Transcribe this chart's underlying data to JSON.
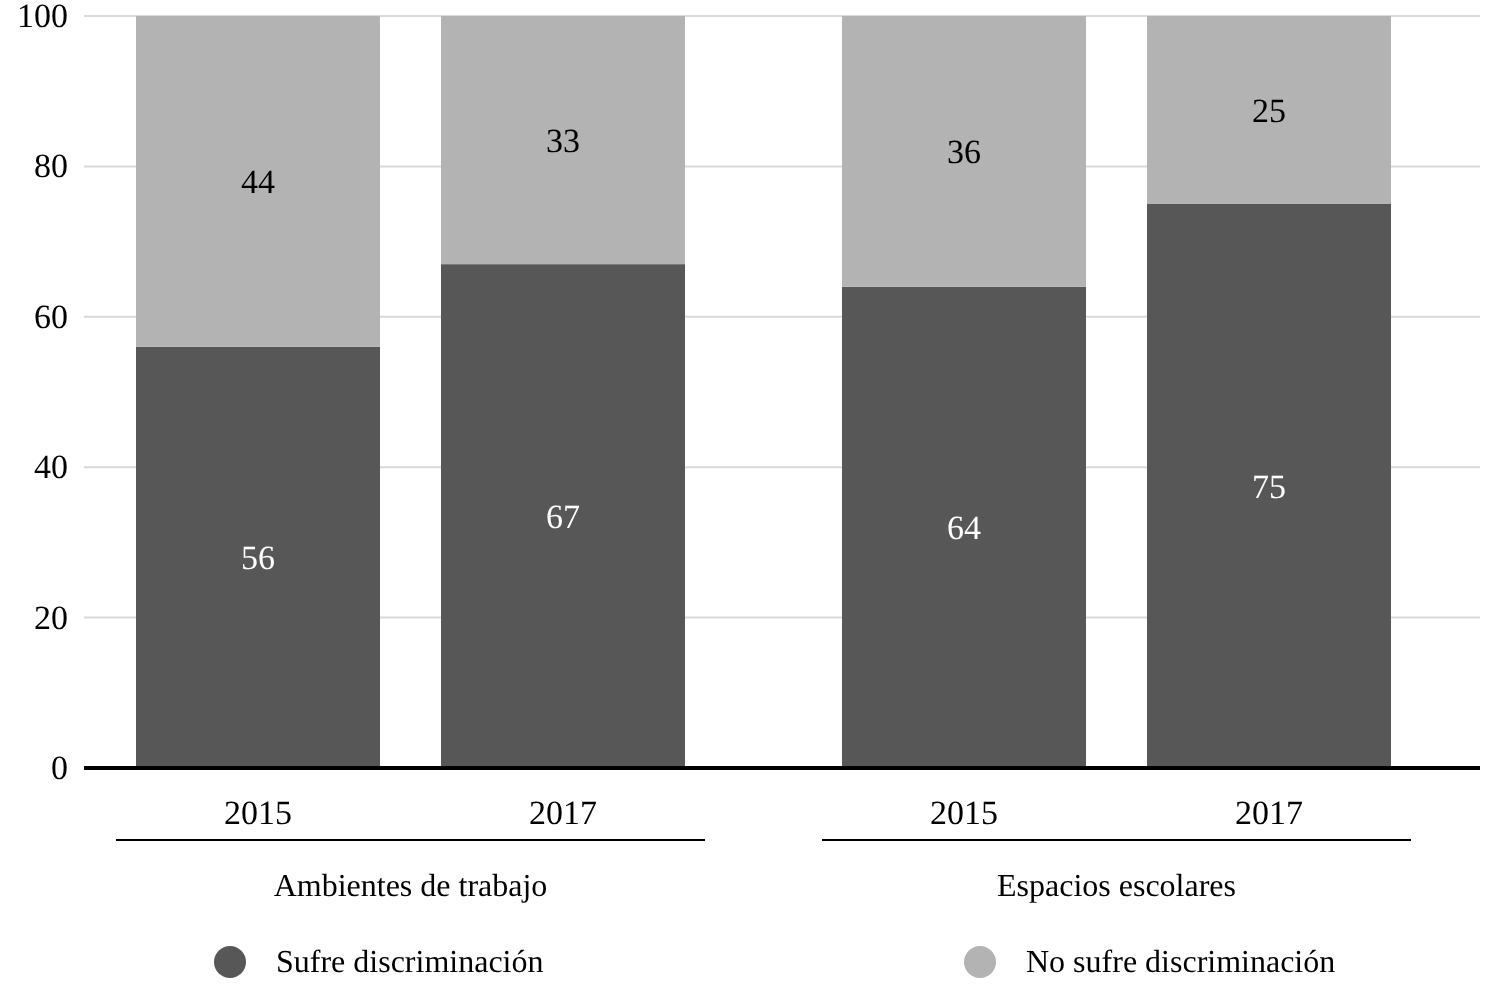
{
  "chart_data": {
    "type": "bar",
    "stacked": true,
    "categories": [
      "2015",
      "2017",
      "2015",
      "2017"
    ],
    "series": [
      {
        "name": "Sufre discriminación",
        "color": "#575757",
        "values": [
          56,
          67,
          64,
          75
        ]
      },
      {
        "name": "No sufre discriminación",
        "color": "#b3b3b3",
        "values": [
          44,
          33,
          36,
          25
        ]
      }
    ],
    "ylim": [
      0,
      100
    ],
    "yticks": [
      0,
      20,
      40,
      60,
      80,
      100
    ],
    "grid": "y",
    "legend": "bottom",
    "data_labels": true,
    "annotations": [
      "Ambientes de trabajo",
      "Espacios escolares"
    ]
  }
}
